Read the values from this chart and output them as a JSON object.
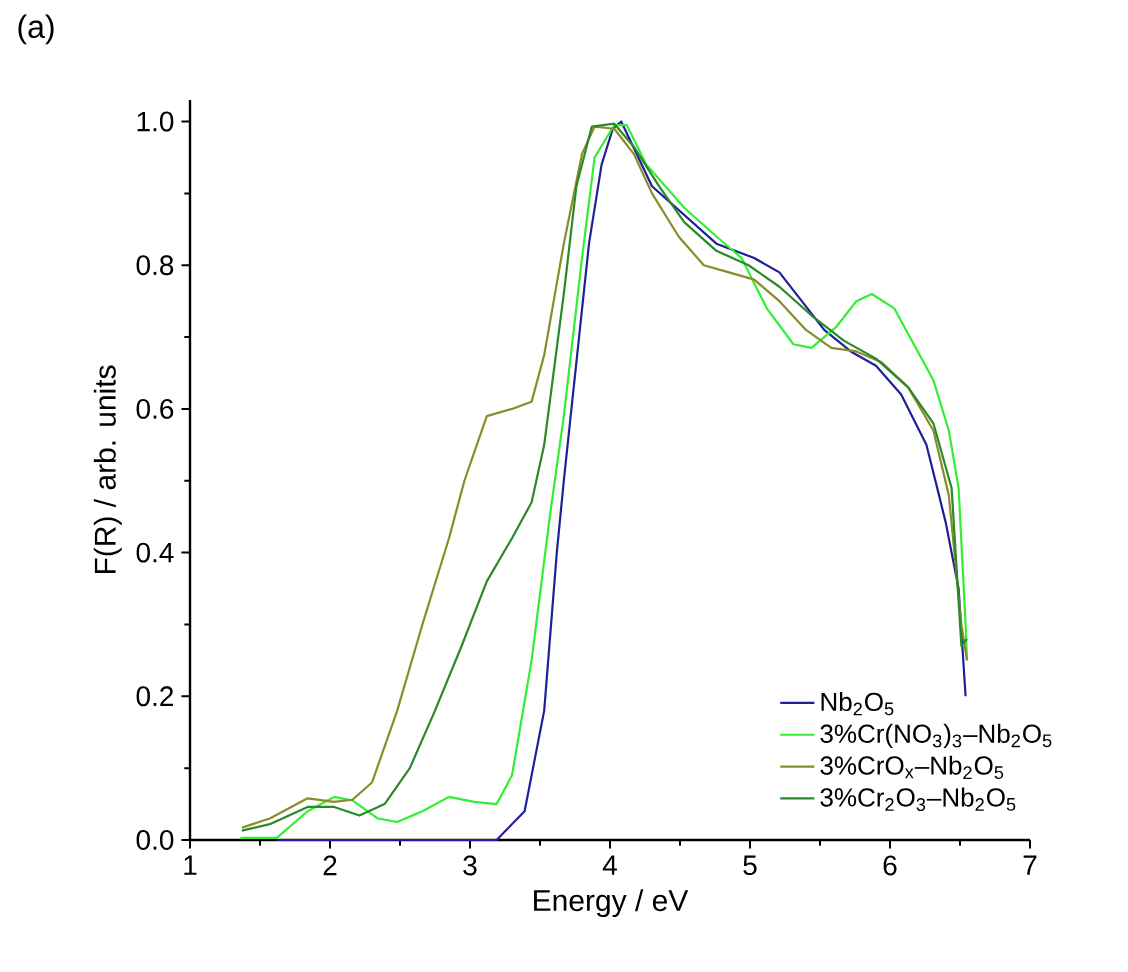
{
  "chart_data": {
    "type": "line",
    "xlabel": "Energy  / eV",
    "ylabel": "F(R) / arb. units",
    "annotations": [
      "(a)"
    ],
    "xlim": [
      1,
      7
    ],
    "ylim": [
      0,
      1.03
    ],
    "xticks": [
      1,
      2,
      3,
      4,
      5,
      6,
      7
    ],
    "yticks": [
      {
        "value": 0,
        "label": "0.0"
      },
      {
        "value": 0.2,
        "label": "0.2"
      },
      {
        "value": 0.4,
        "label": "0.4"
      },
      {
        "value": 0.6,
        "label": "0.6"
      },
      {
        "value": 0.8,
        "label": "0.8"
      },
      {
        "value": 1,
        "label": "1.0"
      }
    ],
    "grid": false,
    "legend": "bottom right",
    "series": [
      {
        "name": "Nb$_{2}$O$_{5}$",
        "color": "#1f1f9a",
        "x": [
          1.62,
          2.5,
          3.19,
          3.39,
          3.53,
          3.62,
          3.67,
          3.76,
          3.85,
          3.94,
          4.02,
          4.08,
          4.3,
          4.76,
          5.03,
          5.21,
          5.53,
          5.72,
          5.9,
          6.08,
          6.26,
          6.35,
          6.4,
          6.49,
          6.54
        ],
        "values": [
          0,
          0,
          0,
          0.04,
          0.18,
          0.4,
          0.5,
          0.665,
          0.83,
          0.94,
          0.99,
          1.0,
          0.91,
          0.83,
          0.81,
          0.79,
          0.71,
          0.68,
          0.66,
          0.62,
          0.55,
          0.48,
          0.44,
          0.35,
          0.2
        ]
      },
      {
        "name": "3%Cr(NO$_{3}$)$_{3}$–Nb$_{2}$O$_{5}$",
        "color": "#33ee33",
        "x": [
          1.36,
          1.62,
          1.84,
          2.03,
          2.16,
          2.34,
          2.48,
          2.66,
          2.85,
          3.03,
          3.19,
          3.3,
          3.44,
          3.57,
          3.67,
          3.8,
          3.89,
          4.03,
          4.12,
          4.26,
          4.53,
          4.76,
          4.94,
          5.12,
          5.31,
          5.44,
          5.62,
          5.76,
          5.87,
          6.03,
          6.17,
          6.31,
          6.42,
          6.49,
          6.54,
          6.55
        ],
        "values": [
          0.003,
          0.003,
          0.04,
          0.06,
          0.055,
          0.03,
          0.025,
          0.04,
          0.06,
          0.053,
          0.05,
          0.09,
          0.25,
          0.45,
          0.59,
          0.81,
          0.95,
          0.995,
          0.995,
          0.94,
          0.88,
          0.84,
          0.81,
          0.74,
          0.69,
          0.685,
          0.715,
          0.75,
          0.76,
          0.74,
          0.69,
          0.64,
          0.57,
          0.49,
          0.3,
          0.25
        ]
      },
      {
        "name": "3%CrO$_{x}$–Nb$_{2}$O$_{5}$",
        "color": "#8b8b2a",
        "x": [
          1.37,
          1.57,
          1.84,
          2.03,
          2.16,
          2.3,
          2.48,
          2.66,
          2.85,
          2.96,
          3.12,
          3.3,
          3.44,
          3.53,
          3.67,
          3.8,
          3.89,
          4.03,
          4.17,
          4.3,
          4.49,
          4.67,
          4.85,
          5.03,
          5.21,
          5.4,
          5.58,
          5.76,
          5.94,
          6.13,
          6.31,
          6.42,
          6.51,
          6.55
        ],
        "values": [
          0.017,
          0.03,
          0.058,
          0.053,
          0.056,
          0.08,
          0.18,
          0.3,
          0.42,
          0.5,
          0.59,
          0.6,
          0.61,
          0.675,
          0.83,
          0.955,
          0.993,
          0.99,
          0.955,
          0.9,
          0.84,
          0.8,
          0.79,
          0.78,
          0.75,
          0.71,
          0.685,
          0.68,
          0.665,
          0.63,
          0.57,
          0.48,
          0.3,
          0.25
        ]
      },
      {
        "name": "3%Cr$_{2}$O$_{3}$–Nb$_{2}$O$_{5}$",
        "color": "#2a8a2a",
        "x": [
          1.37,
          1.57,
          1.84,
          2.03,
          2.21,
          2.39,
          2.57,
          2.75,
          2.94,
          3.12,
          3.3,
          3.44,
          3.53,
          3.67,
          3.76,
          3.87,
          4.03,
          4.17,
          4.35,
          4.53,
          4.76,
          4.99,
          5.21,
          5.44,
          5.67,
          5.9,
          6.13,
          6.31,
          6.44,
          6.51,
          6.55
        ],
        "values": [
          0.013,
          0.022,
          0.046,
          0.046,
          0.034,
          0.05,
          0.1,
          0.18,
          0.27,
          0.36,
          0.42,
          0.47,
          0.55,
          0.76,
          0.91,
          0.993,
          0.997,
          0.965,
          0.91,
          0.86,
          0.82,
          0.8,
          0.77,
          0.73,
          0.695,
          0.67,
          0.63,
          0.58,
          0.49,
          0.27,
          0.28
        ]
      }
    ]
  }
}
